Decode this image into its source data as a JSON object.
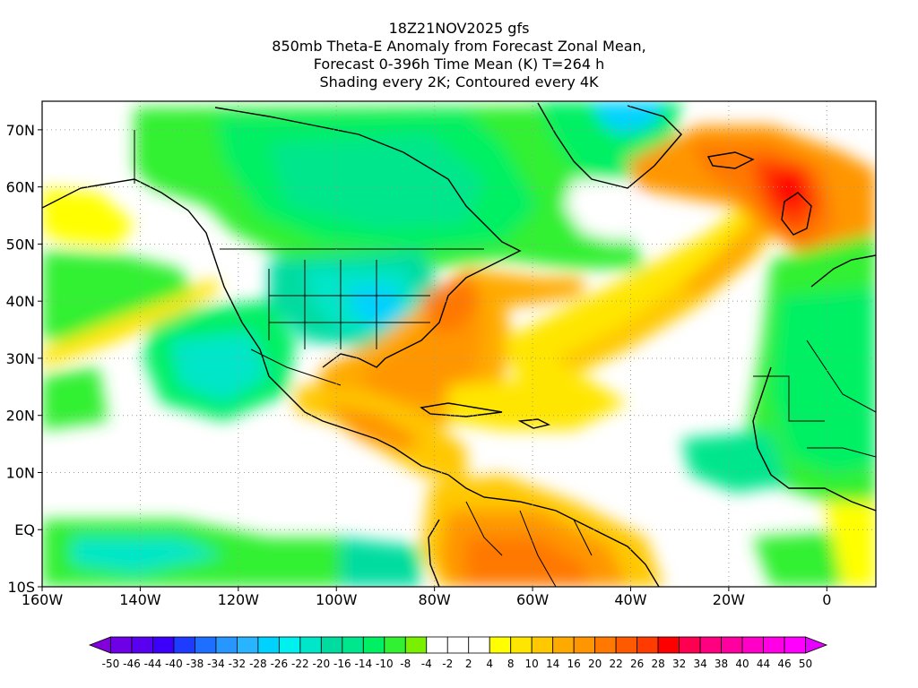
{
  "title": {
    "line1": "18Z21NOV2025 gfs",
    "line2": "850mb Theta-E Anomaly from Forecast Zonal Mean,",
    "line3": "Forecast 0-396h Time Mean (K) T=264 h",
    "line4": "Shading every 2K; Contoured every 4K"
  },
  "map": {
    "lon_range": [
      -160,
      10
    ],
    "lat_range": [
      -10,
      75
    ],
    "lon_ticks": [
      "160W",
      "140W",
      "120W",
      "100W",
      "80W",
      "60W",
      "40W",
      "20W",
      "0"
    ],
    "lat_ticks": [
      "10S",
      "EQ",
      "10N",
      "20N",
      "30N",
      "40N",
      "50N",
      "60N",
      "70N"
    ],
    "grid_color": "#9a9a9a"
  },
  "colorbar": {
    "labels": [
      "-50",
      "-46",
      "-44",
      "-40",
      "-38",
      "-34",
      "-32",
      "-28",
      "-26",
      "-22",
      "-20",
      "-16",
      "-14",
      "-10",
      "-8",
      "-4",
      "-2",
      "2",
      "4",
      "8",
      "10",
      "14",
      "16",
      "20",
      "22",
      "26",
      "28",
      "32",
      "34",
      "38",
      "40",
      "44",
      "46",
      "50"
    ],
    "colors": [
      "#8200dc",
      "#6e00e6",
      "#5a00f0",
      "#3c00fa",
      "#1e3cff",
      "#1e6eff",
      "#2896ff",
      "#28b4ff",
      "#00d2ff",
      "#00f0f0",
      "#00e6c8",
      "#00dca0",
      "#00e68c",
      "#00f064",
      "#32f032",
      "#78f000",
      "#ffffff",
      "#ffffff",
      "#ffffff",
      "#ffff00",
      "#ffe600",
      "#ffc800",
      "#ffaa00",
      "#ff9600",
      "#ff7800",
      "#ff5a00",
      "#ff3c00",
      "#ff0000",
      "#ff0050",
      "#ff0080",
      "#ff00a0",
      "#ff00c8",
      "#ff00e6",
      "#ff00ff",
      "#e600ff"
    ]
  }
}
